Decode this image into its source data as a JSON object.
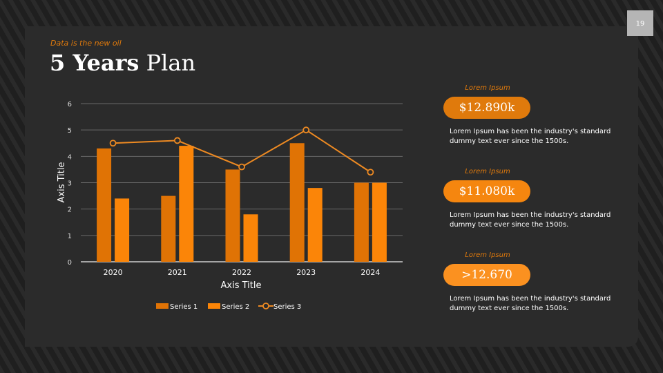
{
  "page_number": "19",
  "header": {
    "subtitle": "Data is the new oil",
    "title_bold": "5 Years",
    "title_light": "Plan"
  },
  "cards": [
    {
      "label": "Lorem Ipsum",
      "value": "$12.890k",
      "color": "#e07a0c",
      "text": "Lorem Ipsum has been the industry's standard dummy text ever since the 1500s."
    },
    {
      "label": "Lorem Ipsum",
      "value": "$11.080k",
      "color": "#f5860f",
      "text": "Lorem Ipsum has been the industry's standard dummy text ever since the 1500s."
    },
    {
      "label": "Lorem Ipsum",
      "value": ">12.670",
      "color": "#fb9120",
      "text": "Lorem Ipsum has been the industry's standard dummy text ever since the 1500s."
    }
  ],
  "chart_data": {
    "type": "bar",
    "categories": [
      "2020",
      "2021",
      "2022",
      "2023",
      "2024"
    ],
    "series": [
      {
        "name": "Series 1",
        "type": "bar",
        "color": "#e07305",
        "values": [
          4.3,
          2.5,
          3.5,
          4.5,
          3.0
        ]
      },
      {
        "name": "Series 2",
        "type": "bar",
        "color": "#fb8508",
        "values": [
          2.4,
          4.4,
          1.8,
          2.8,
          3.0
        ]
      },
      {
        "name": "Series 3",
        "type": "line",
        "color": "#ee8a22",
        "values": [
          4.5,
          4.6,
          3.6,
          5.0,
          3.4
        ]
      }
    ],
    "xlabel": "Axis Title",
    "ylabel": "Axis Title",
    "ylim": [
      0,
      6
    ],
    "yticks": [
      "0",
      "1",
      "2",
      "3",
      "4",
      "5",
      "6"
    ],
    "grid": true,
    "legend": "bottom"
  }
}
